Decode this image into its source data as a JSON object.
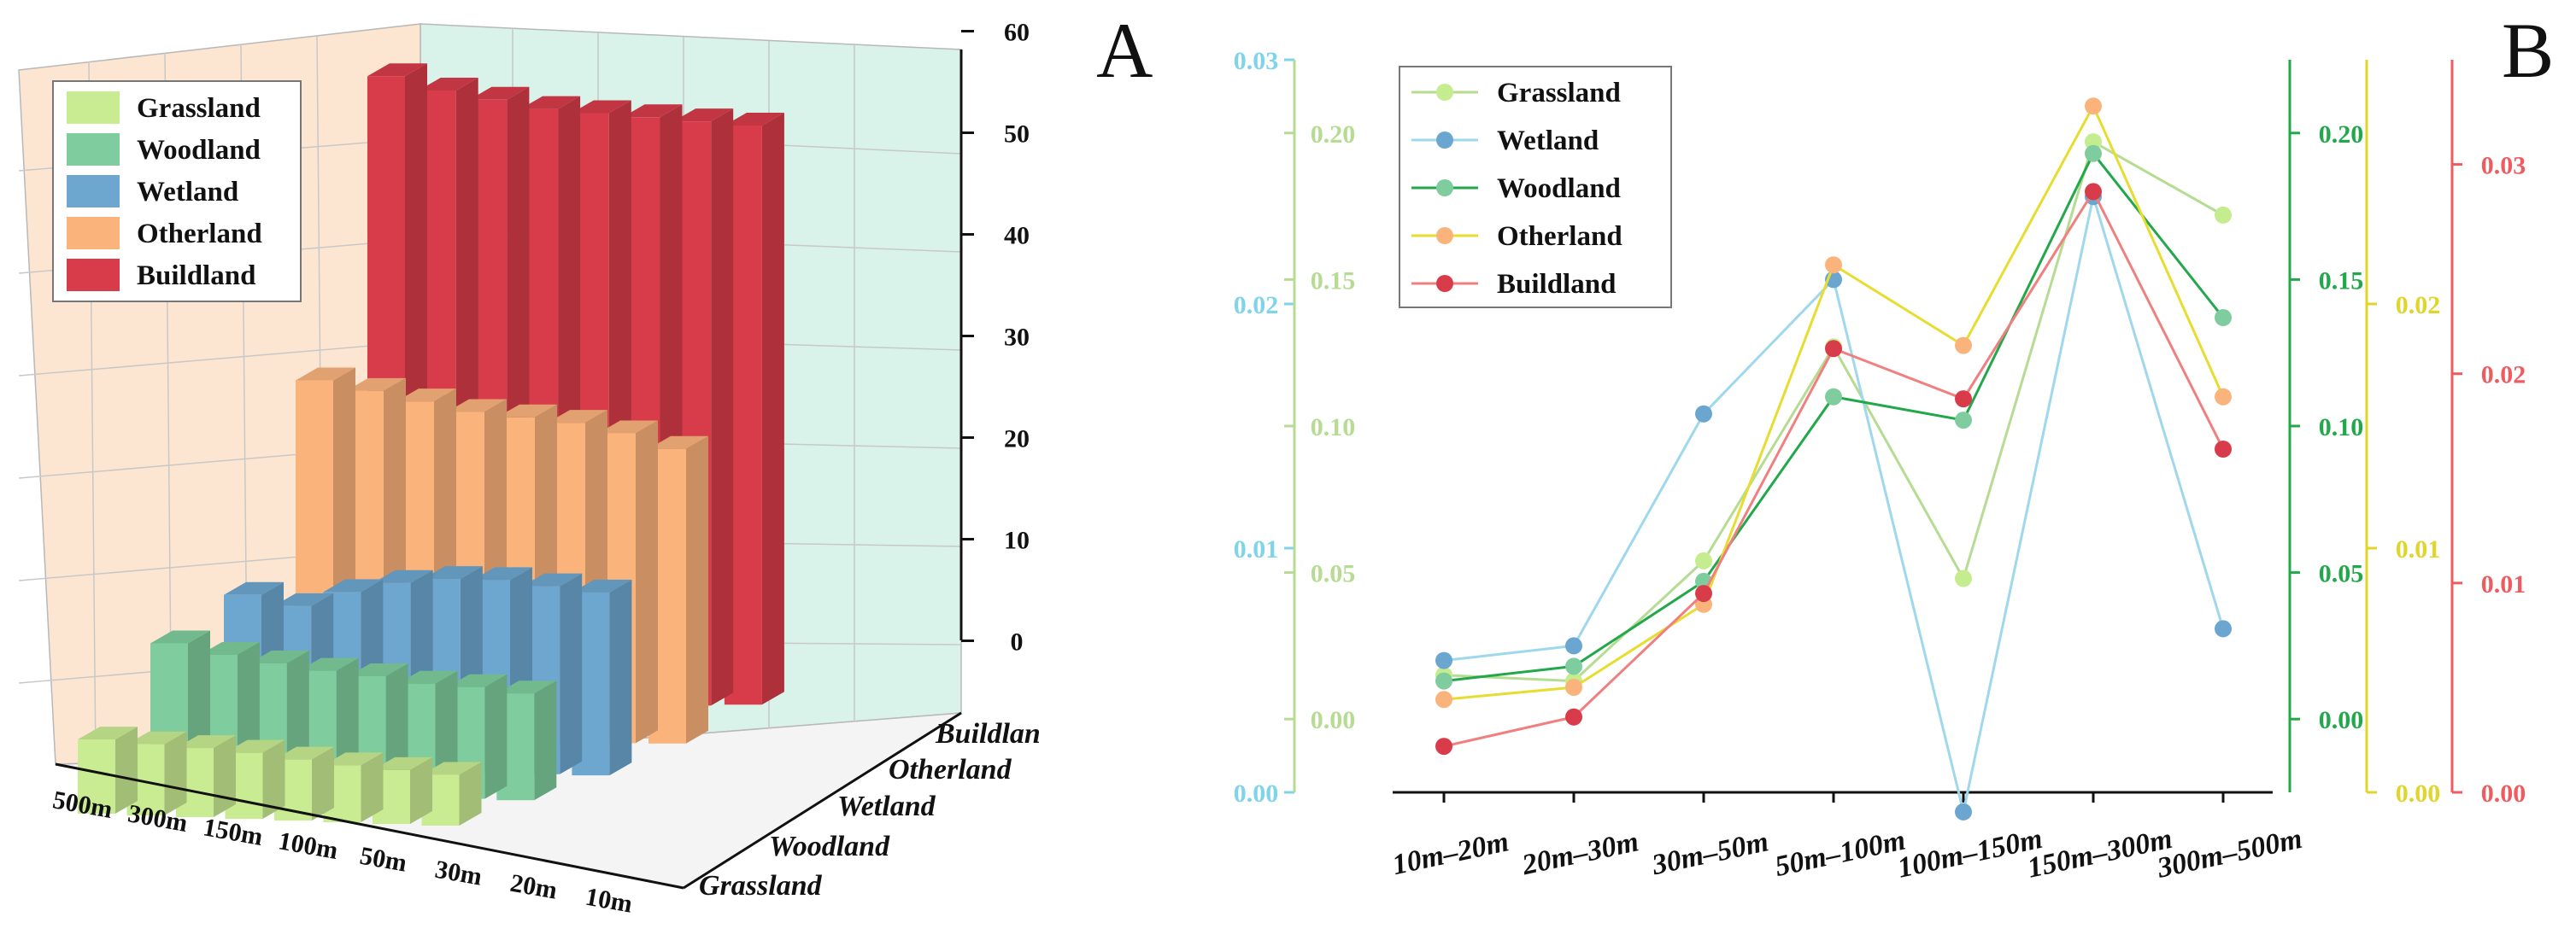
{
  "panels": {
    "a_label": "A",
    "b_label": "B"
  },
  "chart_data": [
    {
      "type": "bar",
      "id": "A",
      "title": "",
      "series_order_back_to_front": [
        "Buildlan",
        "Otherland",
        "Wetland",
        "Woodland",
        "Grassland"
      ],
      "distance_categories": [
        "500m",
        "300m",
        "150m",
        "100m",
        "50m",
        "30m",
        "20m",
        "10m"
      ],
      "land_axis_labels": [
        "Buildlan",
        "Otherland",
        "Wetland",
        "Woodland",
        "Grassland"
      ],
      "zlim": [
        -5,
        60
      ],
      "z_ticks": [
        "60",
        "50",
        "40",
        "30",
        "20",
        "10",
        "0"
      ],
      "legend": [
        "Grassland",
        "Woodland",
        "Wetland",
        "Otherland",
        "Buildland"
      ],
      "series": [
        {
          "name": "Grassland",
          "color": "#c9ec93",
          "values": [
            2.3,
            2.0,
            1.8,
            1.5,
            1.0,
            0.6,
            0.3,
            0.0
          ]
        },
        {
          "name": "Woodland",
          "color": "#7fcd9e",
          "values": [
            9.5,
            8.5,
            7.8,
            7.2,
            6.8,
            6.2,
            6.0,
            5.5
          ]
        },
        {
          "name": "Wetland",
          "color": "#6da7d0",
          "values": [
            12.0,
            11.0,
            12.5,
            13.5,
            14.0,
            14.0,
            13.5,
            13.0
          ]
        },
        {
          "name": "Otherland",
          "color": "#fbb37c",
          "values": [
            30.5,
            29.5,
            28.5,
            27.5,
            27.0,
            26.5,
            25.5,
            24.0
          ]
        },
        {
          "name": "Buildland",
          "color": "#d83c4a",
          "values": [
            57.5,
            56.0,
            55.0,
            54.0,
            53.5,
            53.0,
            52.5,
            52.0
          ]
        }
      ]
    },
    {
      "type": "line",
      "id": "B",
      "title": "",
      "x": [
        "10m–20m",
        "20m–30m",
        "30m–50m",
        "50m–100m",
        "100m–150m",
        "150m–300m",
        "300m–500m"
      ],
      "legend": [
        "Grassland",
        "Wetland",
        "Woodland",
        "Otherland",
        "Buildland"
      ],
      "axes": [
        {
          "name": "Wetland axis",
          "color": "#7fd3ea",
          "range": [
            0,
            0.03
          ],
          "ticks": [
            "0.00",
            "0.01",
            "0.02",
            "0.03"
          ]
        },
        {
          "name": "Grassland axis",
          "color": "#b5dc92",
          "range": [
            -0.025,
            0.225
          ],
          "ticks": [
            "0.00",
            "0.05",
            "0.10",
            "0.15",
            "0.20"
          ]
        },
        {
          "name": "Woodland axis",
          "color": "#22a84a",
          "range": [
            -0.025,
            0.225
          ],
          "ticks": [
            "0.00",
            "0.05",
            "0.10",
            "0.15",
            "0.20"
          ]
        },
        {
          "name": "Otherland axis",
          "color": "#e0d52a",
          "range": [
            0,
            0.03
          ],
          "ticks": [
            "0.00",
            "0.01",
            "0.02"
          ]
        },
        {
          "name": "Buildland axis",
          "color": "#ee5c60",
          "range": [
            0,
            0.035
          ],
          "ticks": [
            "0.00",
            "0.01",
            "0.02",
            "0.03"
          ]
        }
      ],
      "series": [
        {
          "name": "Grassland",
          "axis": 1,
          "line_color": "#b5dc92",
          "marker_color": "#c5ec8e",
          "values": [
            0.015,
            0.013,
            0.054,
            0.127,
            0.048,
            0.197,
            0.172
          ]
        },
        {
          "name": "Wetland",
          "axis": 0,
          "line_color": "#9fd8ec",
          "marker_color": "#6aa6cf",
          "values": [
            0.0054,
            0.006,
            0.0155,
            0.021,
            -0.0008,
            0.0244,
            0.0067
          ]
        },
        {
          "name": "Woodland",
          "axis": 2,
          "line_color": "#22a84a",
          "marker_color": "#7fcd9e",
          "values": [
            0.013,
            0.018,
            0.047,
            0.11,
            0.102,
            0.193,
            0.137
          ]
        },
        {
          "name": "Otherland",
          "axis": 3,
          "line_color": "#e6dd30",
          "marker_color": "#fbb37c",
          "values": [
            0.0038,
            0.0043,
            0.0077,
            0.0216,
            0.0183,
            0.0281,
            0.0162
          ]
        },
        {
          "name": "Buildland",
          "axis": 4,
          "line_color": "#f08080",
          "marker_color": "#d83c4a",
          "values": [
            0.0022,
            0.0036,
            0.0095,
            0.0212,
            0.0188,
            0.0287,
            0.0164
          ]
        }
      ]
    }
  ]
}
